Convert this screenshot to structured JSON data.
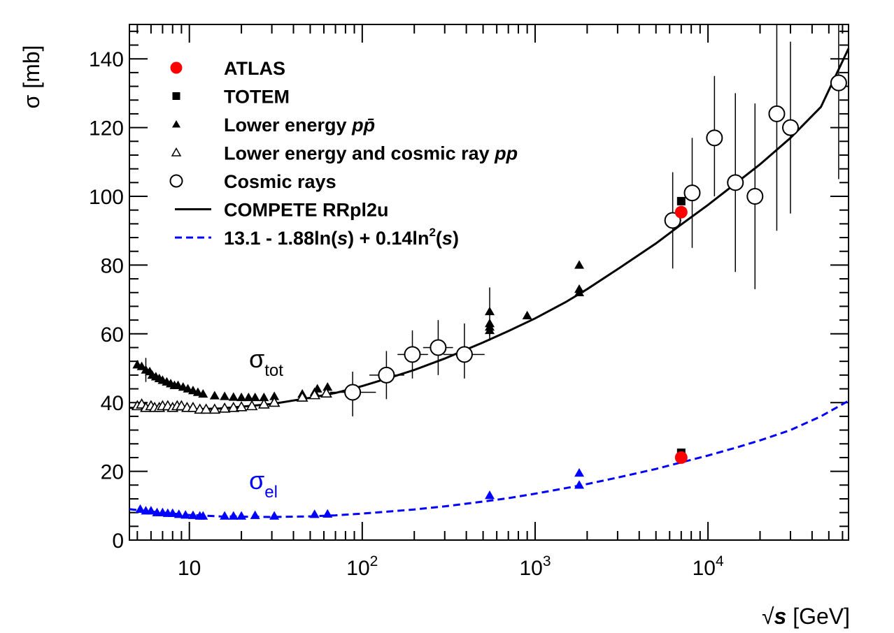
{
  "chart_data": {
    "type": "scatter",
    "xscale": "log",
    "xlabel": {
      "prefix": "√",
      "var": "s",
      "suffix": " [GeV]"
    },
    "ylabel": "σ [mb]",
    "xlim": [
      4.5,
      65000
    ],
    "ylim": [
      0,
      150
    ],
    "grid": false,
    "legend_placement": "top-left",
    "x_ticks": [
      {
        "value": 10,
        "base": "10",
        "exp": ""
      },
      {
        "value": 100,
        "base": "10",
        "exp": "2"
      },
      {
        "value": 1000,
        "base": "10",
        "exp": "3"
      },
      {
        "value": 10000,
        "base": "10",
        "exp": "4"
      }
    ],
    "y_ticks": [
      0,
      20,
      40,
      60,
      80,
      100,
      120,
      140
    ],
    "legend": [
      {
        "key": "atlas",
        "marker": "filled-circle",
        "color": "#ff0000",
        "label": "ATLAS"
      },
      {
        "key": "totem",
        "marker": "filled-square",
        "color": "#000000",
        "label": "TOTEM"
      },
      {
        "key": "ppbar",
        "marker": "filled-triangle",
        "color": "#000000",
        "label_parts": [
          "Lower energy ",
          "p",
          "p̄"
        ]
      },
      {
        "key": "pp",
        "marker": "open-triangle",
        "color": "#000000",
        "label_parts": [
          "Lower energy and cosmic ray ",
          "pp"
        ]
      },
      {
        "key": "cosmic",
        "marker": "open-circle",
        "color": "#000000",
        "label": "Cosmic rays"
      },
      {
        "key": "compete",
        "marker": "solid-line",
        "color": "#000000",
        "label": "COMPETE RRpl2u"
      },
      {
        "key": "fit",
        "marker": "dashed-line",
        "color": "#0000ff",
        "label_parts": [
          "13.1 - 1.88ln(",
          "s",
          ") + 0.14ln",
          "2",
          "(",
          "s",
          ")"
        ]
      }
    ],
    "annotations": {
      "tot": {
        "main": "σ",
        "sub": "tot",
        "color": "#000000"
      },
      "el": {
        "main": "σ",
        "sub": "el",
        "color": "#0000ff"
      }
    },
    "series": [
      {
        "name": "ATLAS",
        "marker": "filled-circle",
        "color": "#ff0000",
        "points": [
          [
            7000,
            95.4
          ],
          [
            7000,
            24.0
          ]
        ]
      },
      {
        "name": "TOTEM",
        "marker": "filled-square",
        "color": "#000000",
        "points": [
          [
            7000,
            98.6
          ],
          [
            7000,
            25.4
          ]
        ]
      },
      {
        "name": "Lower energy p p̄",
        "marker": "filled-triangle",
        "color": "#000000",
        "points": [
          [
            5.0,
            51
          ],
          [
            5.3,
            50.5
          ],
          [
            5.6,
            49.5
          ],
          [
            5.9,
            49
          ],
          [
            6.1,
            48
          ],
          [
            6.4,
            47.5
          ],
          [
            6.7,
            47
          ],
          [
            7.0,
            46.5
          ],
          [
            7.4,
            46
          ],
          [
            7.8,
            45.5
          ],
          [
            8.2,
            45
          ],
          [
            8.6,
            45
          ],
          [
            9.2,
            44.5
          ],
          [
            9.8,
            44
          ],
          [
            10.5,
            43.5
          ],
          [
            11.2,
            43
          ],
          [
            12,
            42.5
          ],
          [
            14,
            42
          ],
          [
            16,
            41.8
          ],
          [
            18,
            41.6
          ],
          [
            20,
            41.5
          ],
          [
            22,
            41.5
          ],
          [
            24,
            41.5
          ],
          [
            27,
            41.5
          ],
          [
            31,
            41.8
          ],
          [
            45,
            42.5
          ],
          [
            53,
            43
          ],
          [
            55,
            44
          ],
          [
            63,
            44.5
          ],
          [
            546,
            61
          ],
          [
            546,
            62
          ],
          [
            546,
            63
          ],
          [
            546,
            66.5
          ],
          [
            900,
            65.3
          ],
          [
            1800,
            72
          ],
          [
            1800,
            73
          ],
          [
            1800,
            80
          ]
        ],
        "errors": [
          [
            5.6,
            49.5,
            3.5
          ],
          [
            546,
            66.5,
            7
          ],
          [
            546,
            61,
            3
          ]
        ]
      },
      {
        "name": "Lower energy and cosmic ray pp",
        "marker": "open-triangle",
        "color": "#000000",
        "points": [
          [
            5.0,
            39
          ],
          [
            5.3,
            39.5
          ],
          [
            5.6,
            38.5
          ],
          [
            6.0,
            39
          ],
          [
            6.3,
            38.5
          ],
          [
            6.7,
            38.5
          ],
          [
            7.0,
            39
          ],
          [
            7.5,
            39
          ],
          [
            8.0,
            38.5
          ],
          [
            8.5,
            39
          ],
          [
            9.0,
            39
          ],
          [
            9.7,
            38.5
          ],
          [
            10.5,
            38.5
          ],
          [
            11.5,
            38
          ],
          [
            12.5,
            38
          ],
          [
            14,
            38
          ],
          [
            16,
            38.3
          ],
          [
            18,
            38.5
          ],
          [
            20,
            38.7
          ],
          [
            23,
            39
          ],
          [
            27,
            39.5
          ],
          [
            31,
            40
          ],
          [
            45,
            41.5
          ],
          [
            53,
            42.2
          ],
          [
            62,
            42.7
          ]
        ]
      },
      {
        "name": "Cosmic rays",
        "marker": "open-circle",
        "color": "#000000",
        "points": [
          {
            "x": 88,
            "y": 43,
            "xlo": 65,
            "xhi": 120,
            "ylo": 36,
            "yhi": 49
          },
          {
            "x": 138,
            "y": 48,
            "xlo": 110,
            "xhi": 175,
            "ylo": 41,
            "yhi": 55
          },
          {
            "x": 195,
            "y": 54,
            "xlo": 160,
            "xhi": 240,
            "ylo": 47,
            "yhi": 61
          },
          {
            "x": 275,
            "y": 56,
            "xlo": 225,
            "xhi": 335,
            "ylo": 48,
            "yhi": 64
          },
          {
            "x": 390,
            "y": 54,
            "xlo": 295,
            "xhi": 510,
            "ylo": 47,
            "yhi": 63
          },
          {
            "x": 6250,
            "y": 93,
            "xlo": 5600,
            "xhi": 7000,
            "ylo": 79,
            "yhi": 107
          },
          {
            "x": 8100,
            "y": 101,
            "xlo": 7300,
            "xhi": 9000,
            "ylo": 85,
            "yhi": 117
          },
          {
            "x": 10900,
            "y": 117,
            "xlo": 9900,
            "xhi": 12000,
            "ylo": 100,
            "yhi": 135
          },
          {
            "x": 14400,
            "y": 104,
            "xlo": 13100,
            "xhi": 15800,
            "ylo": 78,
            "yhi": 130
          },
          {
            "x": 18700,
            "y": 100,
            "xlo": 17000,
            "xhi": 20600,
            "ylo": 73,
            "yhi": 127
          },
          {
            "x": 25000,
            "y": 124,
            "xlo": 22600,
            "xhi": 27500,
            "ylo": 90,
            "yhi": 155
          },
          {
            "x": 30000,
            "y": 120,
            "xlo": 28000,
            "xhi": 32000,
            "ylo": 95,
            "yhi": 145
          },
          {
            "x": 57000,
            "y": 133,
            "xlo": 52000,
            "xhi": 62000,
            "ylo": 105,
            "yhi": 160
          }
        ]
      },
      {
        "name": "Lower energy σ_el (filled)",
        "marker": "filled-triangle",
        "color": "#0000ff",
        "points": [
          [
            5.2,
            9
          ],
          [
            5.6,
            8.5
          ],
          [
            6.0,
            8.5
          ],
          [
            6.5,
            8
          ],
          [
            7.0,
            8
          ],
          [
            7.5,
            7.8
          ],
          [
            8.0,
            7.8
          ],
          [
            8.7,
            7.5
          ],
          [
            9.5,
            7.3
          ],
          [
            10.5,
            7.2
          ],
          [
            11.5,
            7
          ],
          [
            12,
            7
          ],
          [
            16,
            7
          ],
          [
            18,
            7
          ],
          [
            20,
            7
          ],
          [
            24,
            7.2
          ],
          [
            31,
            7
          ],
          [
            53,
            7.5
          ],
          [
            63,
            7.6
          ],
          [
            546,
            13
          ],
          [
            1800,
            16
          ],
          [
            1800,
            19.5
          ]
        ]
      },
      {
        "name": "Lower energy σ_el (open)",
        "marker": "open-triangle",
        "color": "#0000ff",
        "points": [
          [
            5.0,
            10.5
          ],
          [
            5.4,
            10
          ],
          [
            5.8,
            9.5
          ],
          [
            6.2,
            9
          ],
          [
            7.0,
            9
          ],
          [
            7.8,
            9.5
          ],
          [
            8.5,
            8.5
          ],
          [
            9.5,
            8
          ],
          [
            10.5,
            7.5
          ],
          [
            11.5,
            7
          ],
          [
            12.5,
            7
          ],
          [
            14,
            7
          ],
          [
            16,
            6.8
          ],
          [
            20,
            7
          ],
          [
            23,
            7
          ],
          [
            27,
            7
          ],
          [
            45,
            7.5
          ],
          [
            53,
            7.3
          ],
          [
            62,
            7.5
          ]
        ]
      }
    ],
    "curves": [
      {
        "name": "COMPETE RRpl2u",
        "style": "solid",
        "color": "#000000",
        "points": [
          [
            4.5,
            38.5
          ],
          [
            6,
            38.2
          ],
          [
            8,
            38
          ],
          [
            10,
            38
          ],
          [
            15,
            38.3
          ],
          [
            20,
            38.8
          ],
          [
            30,
            39.6
          ],
          [
            50,
            41.4
          ],
          [
            70,
            42.8
          ],
          [
            100,
            44.8
          ],
          [
            150,
            47.5
          ],
          [
            200,
            49.5
          ],
          [
            300,
            52.8
          ],
          [
            500,
            57.5
          ],
          [
            700,
            60.8
          ],
          [
            1000,
            64.5
          ],
          [
            1500,
            69.2
          ],
          [
            2000,
            73
          ],
          [
            3000,
            78.8
          ],
          [
            5000,
            86.3
          ],
          [
            7000,
            91.8
          ],
          [
            10000,
            97.5
          ],
          [
            15000,
            104.4
          ],
          [
            20000,
            109.3
          ],
          [
            30000,
            117
          ],
          [
            45000,
            126
          ],
          [
            65000,
            143
          ]
        ]
      },
      {
        "name": "13.1 - 1.88ln(s) + 0.14ln2(s)",
        "style": "dashed",
        "color": "#0000ff",
        "points": [
          [
            4.5,
            9
          ],
          [
            6,
            8.3
          ],
          [
            8,
            7.7
          ],
          [
            10,
            7.3
          ],
          [
            15,
            6.9
          ],
          [
            20,
            6.8
          ],
          [
            30,
            6.7
          ],
          [
            50,
            6.9
          ],
          [
            70,
            7.2
          ],
          [
            100,
            7.7
          ],
          [
            200,
            8.9
          ],
          [
            300,
            9.8
          ],
          [
            500,
            11.2
          ],
          [
            700,
            12.2
          ],
          [
            1000,
            13.5
          ],
          [
            1500,
            15.1
          ],
          [
            2000,
            16.3
          ],
          [
            3000,
            18.2
          ],
          [
            5000,
            20.7
          ],
          [
            7000,
            22.6
          ],
          [
            10000,
            24.6
          ],
          [
            15000,
            27.1
          ],
          [
            20000,
            29
          ],
          [
            30000,
            32
          ],
          [
            45000,
            36
          ],
          [
            65000,
            40.5
          ]
        ]
      }
    ]
  }
}
